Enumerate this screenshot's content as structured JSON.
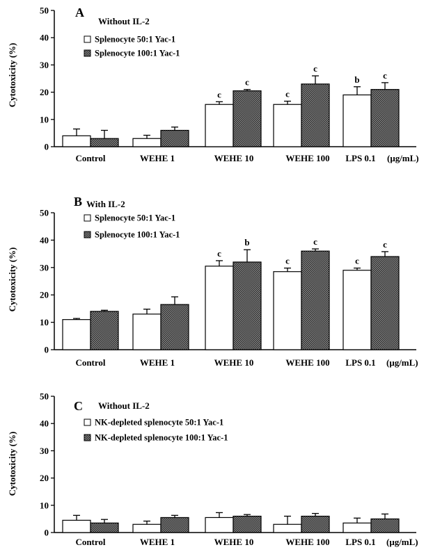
{
  "chart_data": [
    {
      "type": "bar",
      "panel_label": "A",
      "condition": "Without IL-2",
      "ylabel": "Cytotoxicity (%)",
      "xlabel": "",
      "unit_label": "(μg/mL)",
      "ylim": [
        0,
        50
      ],
      "yticks": [
        0,
        10,
        20,
        30,
        40,
        50
      ],
      "categories": [
        "Control",
        "WEHE 1",
        "WEHE 10",
        "WEHE 100",
        "LPS 0.1"
      ],
      "legend_position": "top-left",
      "series": [
        {
          "name": "Splenocyte 50:1 Yac-1",
          "color": "#ffffff",
          "values": [
            4,
            3,
            15.5,
            15.5,
            19
          ],
          "errors": [
            2.5,
            1.2,
            1,
            1.2,
            3
          ],
          "sig": [
            "",
            "",
            "c",
            "c",
            "b"
          ]
        },
        {
          "name": "Splenocyte 100:1 Yac-1",
          "color": "#555555",
          "values": [
            3,
            6,
            20.5,
            23,
            21
          ],
          "errors": [
            3,
            1.2,
            0.5,
            3,
            2.5
          ],
          "sig": [
            "",
            "",
            "c",
            "c",
            "c"
          ]
        }
      ]
    },
    {
      "type": "bar",
      "panel_label": "B",
      "condition": "With IL-2",
      "ylabel": "Cytotoxicity (%)",
      "xlabel": "",
      "unit_label": "(μg/mL)",
      "ylim": [
        0,
        50
      ],
      "yticks": [
        0,
        10,
        20,
        30,
        40,
        50
      ],
      "categories": [
        "Control",
        "WEHE 1",
        "WEHE 10",
        "WEHE 100",
        "LPS 0.1"
      ],
      "legend_position": "top-left",
      "series": [
        {
          "name": "Splenocyte 50:1 Yac-1",
          "color": "#ffffff",
          "values": [
            11,
            13,
            30.5,
            28.5,
            29
          ],
          "errors": [
            0.4,
            1.8,
            2,
            1.3,
            0.8
          ],
          "sig": [
            "",
            "",
            "c",
            "c",
            "c"
          ]
        },
        {
          "name": "Splenocyte 100:1 Yac-1",
          "color": "#555555",
          "values": [
            14,
            16.5,
            32,
            36,
            34
          ],
          "errors": [
            0.4,
            2.8,
            4.5,
            0.8,
            1.8
          ],
          "sig": [
            "",
            "",
            "b",
            "c",
            "c"
          ]
        }
      ]
    },
    {
      "type": "bar",
      "panel_label": "C",
      "condition": "Without IL-2",
      "ylabel": "Cytotoxicity (%)",
      "xlabel": "",
      "unit_label": "(μg/mL)",
      "ylim": [
        0,
        50
      ],
      "yticks": [
        0,
        10,
        20,
        30,
        40,
        50
      ],
      "categories": [
        "Control",
        "WEHE 1",
        "WEHE 10",
        "WEHE 100",
        "LPS 0.1"
      ],
      "legend_position": "top-left",
      "series": [
        {
          "name": "NK-depleted splenocyte 50:1 Yac-1",
          "color": "#ffffff",
          "values": [
            4.5,
            3,
            5.5,
            3,
            3.5
          ],
          "errors": [
            1.8,
            1.2,
            1.8,
            3,
            1.8
          ],
          "sig": [
            "",
            "",
            "",
            "",
            ""
          ]
        },
        {
          "name": "NK-depleted splenocyte 100:1 Yac-1",
          "color": "#555555",
          "values": [
            3.5,
            5.5,
            6,
            6,
            5
          ],
          "errors": [
            1.3,
            0.8,
            0.6,
            1,
            1.8
          ],
          "sig": [
            "",
            "",
            "",
            "",
            ""
          ]
        }
      ]
    }
  ]
}
